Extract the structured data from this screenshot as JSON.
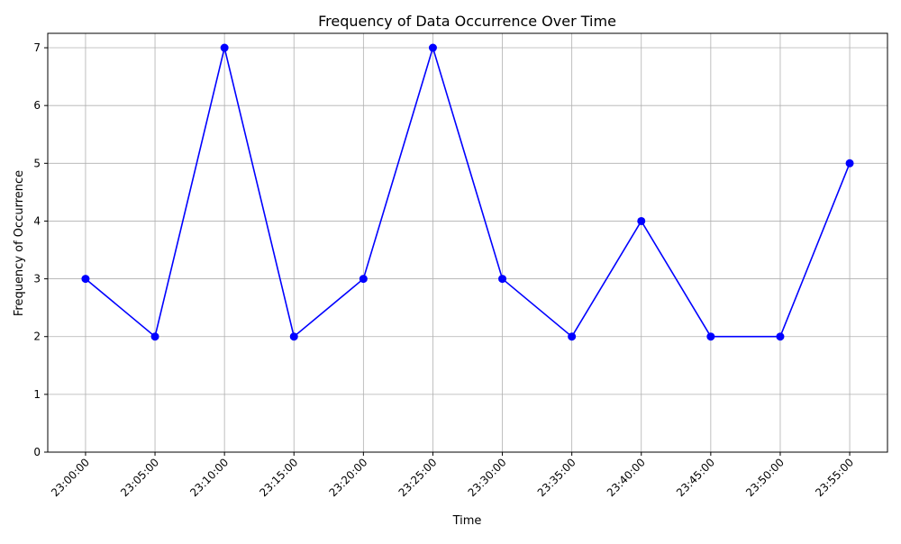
{
  "chart_data": {
    "type": "line",
    "title": "Frequency of Data Occurrence Over Time",
    "xlabel": "Time",
    "ylabel": "Frequency of Occurrence",
    "categories": [
      "23:00:00",
      "23:05:00",
      "23:10:00",
      "23:15:00",
      "23:20:00",
      "23:25:00",
      "23:30:00",
      "23:35:00",
      "23:40:00",
      "23:45:00",
      "23:50:00",
      "23:55:00"
    ],
    "values": [
      3,
      2,
      7,
      2,
      3,
      7,
      3,
      2,
      4,
      2,
      2,
      5
    ],
    "ylim": [
      0,
      7.25
    ],
    "yticks": [
      "0",
      "1",
      "2",
      "3",
      "4",
      "5",
      "6",
      "7"
    ],
    "grid": true,
    "color": "#0000ff",
    "marker": "circle"
  }
}
